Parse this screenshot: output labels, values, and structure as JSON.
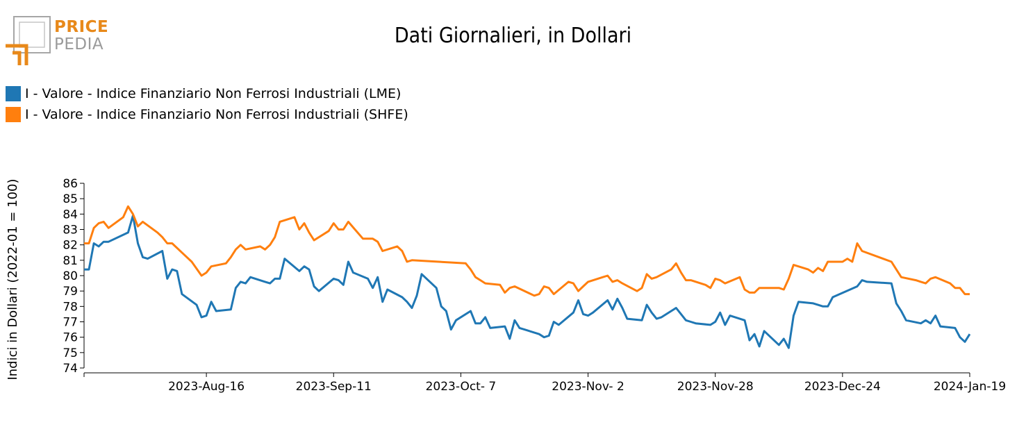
{
  "logo": {
    "line1": "PRICE",
    "line2": "PEDIA",
    "colors": {
      "accent": "#e8891a",
      "grey": "#9a9a9a"
    }
  },
  "chart_data": {
    "type": "line",
    "title": "Dati Giornalieri, in Dollari",
    "xlabel": "",
    "ylabel": "Indici in Dollari (2022-01 = 100)",
    "ylim": [
      74,
      86
    ],
    "xlim": [
      "2023-07-22",
      "2024-01-19"
    ],
    "yticks": [
      74,
      75,
      76,
      77,
      78,
      79,
      80,
      81,
      82,
      83,
      84,
      85,
      86
    ],
    "xticks": [
      {
        "date": "2023-08-16",
        "label": "2023-Aug-16"
      },
      {
        "date": "2023-09-11",
        "label": "2023-Sep-11"
      },
      {
        "date": "2023-10-07",
        "label": "2023-Oct- 7"
      },
      {
        "date": "2023-11-02",
        "label": "2023-Nov- 2"
      },
      {
        "date": "2023-11-28",
        "label": "2023-Nov-28"
      },
      {
        "date": "2023-12-24",
        "label": "2023-Dec-24"
      },
      {
        "date": "2024-01-19",
        "label": "2024-Jan-19"
      }
    ],
    "grid": false,
    "legend_position": "top-left",
    "series": [
      {
        "name": "I - Valore - Indice Finanziario Non Ferrosi Industriali (LME)",
        "color": "#1f77b4",
        "points": [
          [
            "2023-07-22",
            80.4
          ],
          [
            "2023-07-23",
            80.4
          ],
          [
            "2023-07-24",
            82.1
          ],
          [
            "2023-07-25",
            81.9
          ],
          [
            "2023-07-26",
            82.2
          ],
          [
            "2023-07-27",
            82.2
          ],
          [
            "2023-07-31",
            82.8
          ],
          [
            "2023-08-01",
            83.9
          ],
          [
            "2023-08-02",
            82.1
          ],
          [
            "2023-08-03",
            81.2
          ],
          [
            "2023-08-04",
            81.1
          ],
          [
            "2023-08-07",
            81.6
          ],
          [
            "2023-08-08",
            79.8
          ],
          [
            "2023-08-09",
            80.4
          ],
          [
            "2023-08-10",
            80.3
          ],
          [
            "2023-08-11",
            78.8
          ],
          [
            "2023-08-14",
            78.1
          ],
          [
            "2023-08-15",
            77.3
          ],
          [
            "2023-08-16",
            77.4
          ],
          [
            "2023-08-17",
            78.3
          ],
          [
            "2023-08-18",
            77.7
          ],
          [
            "2023-08-21",
            77.8
          ],
          [
            "2023-08-22",
            79.2
          ],
          [
            "2023-08-23",
            79.6
          ],
          [
            "2023-08-24",
            79.5
          ],
          [
            "2023-08-25",
            79.9
          ],
          [
            "2023-08-28",
            79.6
          ],
          [
            "2023-08-29",
            79.5
          ],
          [
            "2023-08-30",
            79.8
          ],
          [
            "2023-08-31",
            79.8
          ],
          [
            "2023-09-01",
            81.1
          ],
          [
            "2023-09-04",
            80.3
          ],
          [
            "2023-09-05",
            80.6
          ],
          [
            "2023-09-06",
            80.4
          ],
          [
            "2023-09-07",
            79.3
          ],
          [
            "2023-09-08",
            79.0
          ],
          [
            "2023-09-11",
            79.8
          ],
          [
            "2023-09-12",
            79.7
          ],
          [
            "2023-09-13",
            79.4
          ],
          [
            "2023-09-14",
            80.9
          ],
          [
            "2023-09-15",
            80.2
          ],
          [
            "2023-09-18",
            79.8
          ],
          [
            "2023-09-19",
            79.2
          ],
          [
            "2023-09-20",
            79.9
          ],
          [
            "2023-09-21",
            78.3
          ],
          [
            "2023-09-22",
            79.1
          ],
          [
            "2023-09-25",
            78.6
          ],
          [
            "2023-09-26",
            78.3
          ],
          [
            "2023-09-27",
            77.9
          ],
          [
            "2023-09-28",
            78.7
          ],
          [
            "2023-09-29",
            80.1
          ],
          [
            "2023-10-02",
            79.2
          ],
          [
            "2023-10-03",
            78.0
          ],
          [
            "2023-10-04",
            77.7
          ],
          [
            "2023-10-05",
            76.5
          ],
          [
            "2023-10-06",
            77.1
          ],
          [
            "2023-10-09",
            77.7
          ],
          [
            "2023-10-10",
            76.9
          ],
          [
            "2023-10-11",
            76.9
          ],
          [
            "2023-10-12",
            77.3
          ],
          [
            "2023-10-13",
            76.6
          ],
          [
            "2023-10-16",
            76.7
          ],
          [
            "2023-10-17",
            75.9
          ],
          [
            "2023-10-18",
            77.1
          ],
          [
            "2023-10-19",
            76.6
          ],
          [
            "2023-10-20",
            76.5
          ],
          [
            "2023-10-23",
            76.2
          ],
          [
            "2023-10-24",
            76.0
          ],
          [
            "2023-10-25",
            76.1
          ],
          [
            "2023-10-26",
            77.0
          ],
          [
            "2023-10-27",
            76.8
          ],
          [
            "2023-10-30",
            77.6
          ],
          [
            "2023-10-31",
            78.4
          ],
          [
            "2023-11-01",
            77.5
          ],
          [
            "2023-11-02",
            77.4
          ],
          [
            "2023-11-03",
            77.6
          ],
          [
            "2023-11-06",
            78.4
          ],
          [
            "2023-11-07",
            77.8
          ],
          [
            "2023-11-08",
            78.5
          ],
          [
            "2023-11-09",
            77.9
          ],
          [
            "2023-11-10",
            77.2
          ],
          [
            "2023-11-13",
            77.1
          ],
          [
            "2023-11-14",
            78.1
          ],
          [
            "2023-11-15",
            77.6
          ],
          [
            "2023-11-16",
            77.2
          ],
          [
            "2023-11-17",
            77.3
          ],
          [
            "2023-11-20",
            77.9
          ],
          [
            "2023-11-21",
            77.5
          ],
          [
            "2023-11-22",
            77.1
          ],
          [
            "2023-11-23",
            77.0
          ],
          [
            "2023-11-24",
            76.9
          ],
          [
            "2023-11-27",
            76.8
          ],
          [
            "2023-11-28",
            77.0
          ],
          [
            "2023-11-29",
            77.6
          ],
          [
            "2023-11-30",
            76.8
          ],
          [
            "2023-12-01",
            77.4
          ],
          [
            "2023-12-04",
            77.1
          ],
          [
            "2023-12-05",
            75.8
          ],
          [
            "2023-12-06",
            76.2
          ],
          [
            "2023-12-07",
            75.4
          ],
          [
            "2023-12-08",
            76.4
          ],
          [
            "2023-12-11",
            75.5
          ],
          [
            "2023-12-12",
            75.9
          ],
          [
            "2023-12-13",
            75.3
          ],
          [
            "2023-12-14",
            77.4
          ],
          [
            "2023-12-15",
            78.3
          ],
          [
            "2023-12-18",
            78.2
          ],
          [
            "2023-12-19",
            78.1
          ],
          [
            "2023-12-20",
            78.0
          ],
          [
            "2023-12-21",
            78.0
          ],
          [
            "2023-12-22",
            78.6
          ],
          [
            "2023-12-27",
            79.3
          ],
          [
            "2023-12-28",
            79.7
          ],
          [
            "2023-12-29",
            79.6
          ],
          [
            "2024-01-03",
            79.5
          ],
          [
            "2024-01-04",
            78.2
          ],
          [
            "2024-01-05",
            77.7
          ],
          [
            "2024-01-06",
            77.1
          ],
          [
            "2024-01-09",
            76.9
          ],
          [
            "2024-01-10",
            77.1
          ],
          [
            "2024-01-11",
            76.9
          ],
          [
            "2024-01-12",
            77.4
          ],
          [
            "2024-01-13",
            76.7
          ],
          [
            "2024-01-16",
            76.6
          ],
          [
            "2024-01-17",
            76.0
          ],
          [
            "2024-01-18",
            75.7
          ],
          [
            "2024-01-19",
            76.2
          ]
        ]
      },
      {
        "name": "I - Valore - Indice Finanziario Non Ferrosi Industriali (SHFE)",
        "color": "#ff7f0e",
        "points": [
          [
            "2023-07-22",
            82.1
          ],
          [
            "2023-07-23",
            82.1
          ],
          [
            "2023-07-24",
            83.1
          ],
          [
            "2023-07-25",
            83.4
          ],
          [
            "2023-07-26",
            83.5
          ],
          [
            "2023-07-27",
            83.1
          ],
          [
            "2023-07-30",
            83.8
          ],
          [
            "2023-07-31",
            84.5
          ],
          [
            "2023-08-01",
            84.0
          ],
          [
            "2023-08-02",
            83.2
          ],
          [
            "2023-08-03",
            83.5
          ],
          [
            "2023-08-06",
            82.8
          ],
          [
            "2023-08-07",
            82.5
          ],
          [
            "2023-08-08",
            82.1
          ],
          [
            "2023-08-09",
            82.1
          ],
          [
            "2023-08-11",
            81.5
          ],
          [
            "2023-08-13",
            80.9
          ],
          [
            "2023-08-15",
            80.0
          ],
          [
            "2023-08-16",
            80.2
          ],
          [
            "2023-08-17",
            80.6
          ],
          [
            "2023-08-20",
            80.8
          ],
          [
            "2023-08-21",
            81.2
          ],
          [
            "2023-08-22",
            81.7
          ],
          [
            "2023-08-23",
            82.0
          ],
          [
            "2023-08-24",
            81.7
          ],
          [
            "2023-08-27",
            81.9
          ],
          [
            "2023-08-28",
            81.7
          ],
          [
            "2023-08-29",
            82.0
          ],
          [
            "2023-08-30",
            82.5
          ],
          [
            "2023-08-31",
            83.5
          ],
          [
            "2023-09-03",
            83.8
          ],
          [
            "2023-09-04",
            83.0
          ],
          [
            "2023-09-05",
            83.4
          ],
          [
            "2023-09-06",
            82.8
          ],
          [
            "2023-09-07",
            82.3
          ],
          [
            "2023-09-10",
            82.9
          ],
          [
            "2023-09-11",
            83.4
          ],
          [
            "2023-09-12",
            83.0
          ],
          [
            "2023-09-13",
            83.0
          ],
          [
            "2023-09-14",
            83.5
          ],
          [
            "2023-09-17",
            82.4
          ],
          [
            "2023-09-18",
            82.4
          ],
          [
            "2023-09-19",
            82.4
          ],
          [
            "2023-09-20",
            82.2
          ],
          [
            "2023-09-21",
            81.6
          ],
          [
            "2023-09-24",
            81.9
          ],
          [
            "2023-09-25",
            81.6
          ],
          [
            "2023-09-26",
            80.9
          ],
          [
            "2023-09-27",
            81.0
          ],
          [
            "2023-10-08",
            80.8
          ],
          [
            "2023-10-09",
            80.4
          ],
          [
            "2023-10-10",
            79.9
          ],
          [
            "2023-10-11",
            79.7
          ],
          [
            "2023-10-12",
            79.5
          ],
          [
            "2023-10-15",
            79.4
          ],
          [
            "2023-10-16",
            78.9
          ],
          [
            "2023-10-17",
            79.2
          ],
          [
            "2023-10-18",
            79.3
          ],
          [
            "2023-10-22",
            78.7
          ],
          [
            "2023-10-23",
            78.8
          ],
          [
            "2023-10-24",
            79.3
          ],
          [
            "2023-10-25",
            79.2
          ],
          [
            "2023-10-26",
            78.8
          ],
          [
            "2023-10-29",
            79.6
          ],
          [
            "2023-10-30",
            79.5
          ],
          [
            "2023-10-31",
            79.0
          ],
          [
            "2023-11-01",
            79.3
          ],
          [
            "2023-11-02",
            79.6
          ],
          [
            "2023-11-05",
            79.9
          ],
          [
            "2023-11-06",
            80.0
          ],
          [
            "2023-11-07",
            79.6
          ],
          [
            "2023-11-08",
            79.7
          ],
          [
            "2023-11-09",
            79.5
          ],
          [
            "2023-11-12",
            79.0
          ],
          [
            "2023-11-13",
            79.2
          ],
          [
            "2023-11-14",
            80.1
          ],
          [
            "2023-11-15",
            79.8
          ],
          [
            "2023-11-16",
            79.9
          ],
          [
            "2023-11-19",
            80.4
          ],
          [
            "2023-11-20",
            80.8
          ],
          [
            "2023-11-21",
            80.2
          ],
          [
            "2023-11-22",
            79.7
          ],
          [
            "2023-11-23",
            79.7
          ],
          [
            "2023-11-26",
            79.4
          ],
          [
            "2023-11-27",
            79.2
          ],
          [
            "2023-11-28",
            79.8
          ],
          [
            "2023-11-29",
            79.7
          ],
          [
            "2023-11-30",
            79.5
          ],
          [
            "2023-12-03",
            79.9
          ],
          [
            "2023-12-04",
            79.1
          ],
          [
            "2023-12-05",
            78.9
          ],
          [
            "2023-12-06",
            78.9
          ],
          [
            "2023-12-07",
            79.2
          ],
          [
            "2023-12-10",
            79.2
          ],
          [
            "2023-12-11",
            79.2
          ],
          [
            "2023-12-12",
            79.1
          ],
          [
            "2023-12-13",
            79.8
          ],
          [
            "2023-12-14",
            80.7
          ],
          [
            "2023-12-17",
            80.4
          ],
          [
            "2023-12-18",
            80.2
          ],
          [
            "2023-12-19",
            80.5
          ],
          [
            "2023-12-20",
            80.3
          ],
          [
            "2023-12-21",
            80.9
          ],
          [
            "2023-12-24",
            80.9
          ],
          [
            "2023-12-25",
            81.1
          ],
          [
            "2023-12-26",
            80.9
          ],
          [
            "2023-12-27",
            82.1
          ],
          [
            "2023-12-28",
            81.6
          ],
          [
            "2024-01-03",
            80.9
          ],
          [
            "2024-01-04",
            80.4
          ],
          [
            "2024-01-05",
            79.9
          ],
          [
            "2024-01-08",
            79.7
          ],
          [
            "2024-01-09",
            79.6
          ],
          [
            "2024-01-10",
            79.5
          ],
          [
            "2024-01-11",
            79.8
          ],
          [
            "2024-01-12",
            79.9
          ],
          [
            "2024-01-15",
            79.5
          ],
          [
            "2024-01-16",
            79.2
          ],
          [
            "2024-01-17",
            79.2
          ],
          [
            "2024-01-18",
            78.8
          ],
          [
            "2024-01-19",
            78.8
          ]
        ]
      }
    ]
  }
}
